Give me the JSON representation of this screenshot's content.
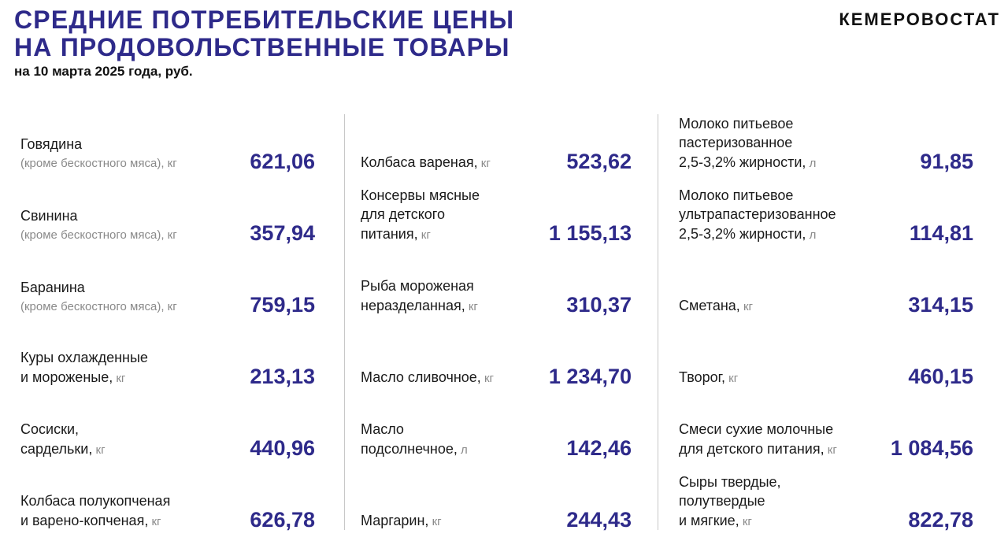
{
  "header": {
    "title_line1": "СРЕДНИЕ ПОТРЕБИТЕЛЬСКИЕ ЦЕНЫ",
    "title_line2": "НА ПРОДОВОЛЬСТВЕННЫЕ ТОВАРЫ",
    "subtitle": "на 10 марта 2025 года, руб.",
    "brand": "КЕМЕРОВОСТАТ"
  },
  "columns": [
    {
      "items": [
        {
          "lines": [
            "Говядина"
          ],
          "note": "(кроме бескостного мяса),",
          "unit": "кг",
          "price": "621,06"
        },
        {
          "lines": [
            "Свинина"
          ],
          "note": "(кроме бескостного мяса),",
          "unit": "кг",
          "price": "357,94"
        },
        {
          "lines": [
            "Баранина"
          ],
          "note": "(кроме бескостного мяса),",
          "unit": "кг",
          "price": "759,15"
        },
        {
          "lines": [
            "Куры охлажденные",
            "и мороженые,"
          ],
          "unit": "кг",
          "price": "213,13"
        },
        {
          "lines": [
            "Сосиски,",
            "сардельки,"
          ],
          "unit": "кг",
          "price": "440,96"
        },
        {
          "lines": [
            "Колбаса полукопченая",
            "и варено-копченая,"
          ],
          "unit": "кг",
          "price": "626,78"
        }
      ]
    },
    {
      "items": [
        {
          "lines": [
            "Колбаса вареная,"
          ],
          "unit": "кг",
          "price": "523,62"
        },
        {
          "lines": [
            "Консервы мясные",
            "для детского",
            "питания,"
          ],
          "unit": "кг",
          "price": "1 155,13"
        },
        {
          "lines": [
            "Рыба мороженая",
            "неразделанная,"
          ],
          "unit": "кг",
          "price": "310,37"
        },
        {
          "lines": [
            "Масло сливочное,"
          ],
          "unit": "кг",
          "price": "1 234,70"
        },
        {
          "lines": [
            "Масло",
            "подсолнечное,"
          ],
          "unit": "л",
          "price": "142,46"
        },
        {
          "lines": [
            "Маргарин,"
          ],
          "unit": "кг",
          "price": "244,43"
        }
      ]
    },
    {
      "items": [
        {
          "lines": [
            "Молоко питьевое",
            "пастеризованное",
            "2,5-3,2% жирности,"
          ],
          "unit": "л",
          "price": "91,85"
        },
        {
          "lines": [
            "Молоко питьевое",
            "ультрапастеризованное",
            "2,5-3,2% жирности,"
          ],
          "unit": "л",
          "price": "114,81"
        },
        {
          "lines": [
            "Сметана,"
          ],
          "unit": "кг",
          "price": "314,15"
        },
        {
          "lines": [
            "Творог,"
          ],
          "unit": "кг",
          "price": "460,15"
        },
        {
          "lines": [
            "Смеси сухие молочные",
            "для детского питания,"
          ],
          "unit": "кг",
          "price": "1 084,56"
        },
        {
          "lines": [
            "Сыры твердые,",
            "полутвердые",
            "и мягкие,"
          ],
          "unit": "кг",
          "price": "822,78"
        }
      ]
    }
  ]
}
